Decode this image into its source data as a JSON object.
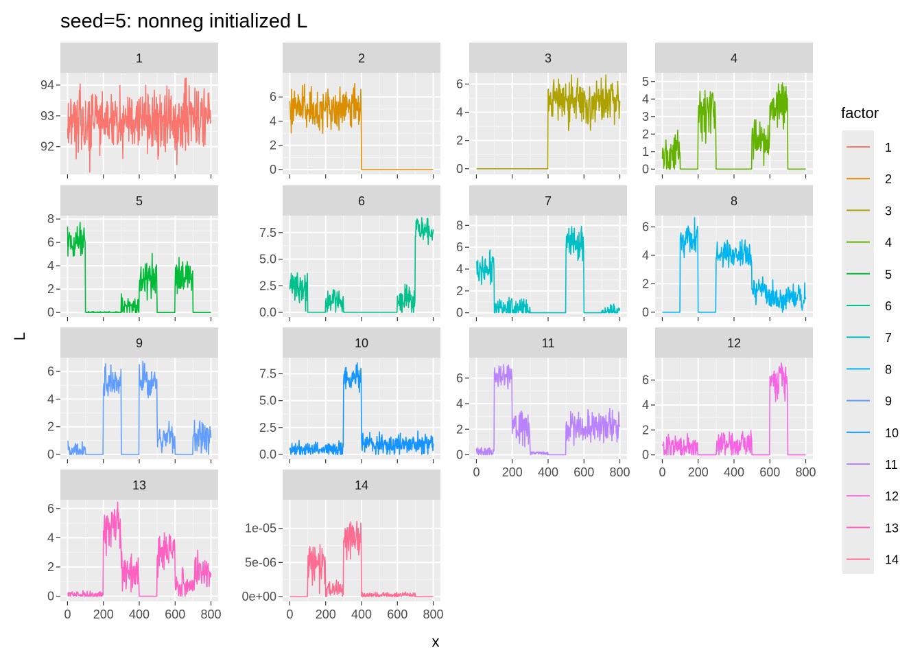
{
  "chart_data": {
    "type": "line",
    "title": "seed=5: nonneg initialized L",
    "xlabel": "x",
    "ylabel": "L",
    "facet_by": "factor",
    "scales": "free_y",
    "xlim": [
      0,
      800
    ],
    "x_ticks": [
      0,
      200,
      400,
      600,
      800
    ],
    "legend": {
      "title": "factor",
      "position": "right"
    },
    "panels": [
      {
        "label": "1",
        "color": "#F8766D",
        "ylim": [
          91.1,
          94.4
        ],
        "y_ticks": [
          92,
          93,
          94
        ],
        "y_tick_labels": [
          "92",
          "93",
          "94"
        ],
        "x_axis_visible": false,
        "segments": [
          {
            "x0": 0,
            "x1": 800,
            "mean": 92.85,
            "noise": 0.55
          }
        ]
      },
      {
        "label": "2",
        "color": "#DB8E00",
        "ylim": [
          -0.4,
          8.0
        ],
        "y_ticks": [
          0,
          2,
          4,
          6
        ],
        "y_tick_labels": [
          "0",
          "2",
          "4",
          "6"
        ],
        "x_axis_visible": false,
        "segments": [
          {
            "x0": 0,
            "x1": 400,
            "mean": 5.0,
            "noise": 0.8
          },
          {
            "x0": 400,
            "x1": 800,
            "mean": 0,
            "noise": 0
          }
        ]
      },
      {
        "label": "3",
        "color": "#AEA200",
        "ylim": [
          -0.4,
          6.8
        ],
        "y_ticks": [
          0,
          2,
          4,
          6
        ],
        "y_tick_labels": [
          "0",
          "2",
          "4",
          "6"
        ],
        "x_axis_visible": false,
        "segments": [
          {
            "x0": 0,
            "x1": 400,
            "mean": 0,
            "noise": 0
          },
          {
            "x0": 400,
            "x1": 800,
            "mean": 4.8,
            "noise": 0.75
          }
        ]
      },
      {
        "label": "4",
        "color": "#64B200",
        "ylim": [
          -0.3,
          5.5
        ],
        "y_ticks": [
          0,
          1,
          2,
          3,
          4,
          5
        ],
        "y_tick_labels": [
          "0",
          "1",
          "2",
          "3",
          "4",
          "5"
        ],
        "x_axis_visible": false,
        "segments": [
          {
            "x0": 0,
            "x1": 100,
            "mean": 1.0,
            "noise": 0.55
          },
          {
            "x0": 100,
            "x1": 200,
            "mean": 0,
            "noise": 0
          },
          {
            "x0": 200,
            "x1": 300,
            "mean": 3.2,
            "noise": 0.6
          },
          {
            "x0": 300,
            "x1": 500,
            "mean": 0,
            "noise": 0
          },
          {
            "x0": 500,
            "x1": 600,
            "mean": 1.6,
            "noise": 0.55
          },
          {
            "x0": 600,
            "x1": 700,
            "mean": 3.5,
            "noise": 0.6
          },
          {
            "x0": 700,
            "x1": 800,
            "mean": 0,
            "noise": 0
          }
        ]
      },
      {
        "label": "5",
        "color": "#00BA38",
        "ylim": [
          -0.4,
          8.3
        ],
        "y_ticks": [
          0,
          2,
          4,
          6,
          8
        ],
        "y_tick_labels": [
          "0",
          "2",
          "4",
          "6",
          "8"
        ],
        "x_axis_visible": false,
        "segments": [
          {
            "x0": 0,
            "x1": 100,
            "mean": 6.0,
            "noise": 0.7
          },
          {
            "x0": 100,
            "x1": 300,
            "mean": 0,
            "noise": 0.05
          },
          {
            "x0": 300,
            "x1": 400,
            "mean": 0.5,
            "noise": 0.4
          },
          {
            "x0": 400,
            "x1": 500,
            "mean": 3.0,
            "noise": 0.8
          },
          {
            "x0": 500,
            "x1": 600,
            "mean": 0,
            "noise": 0
          },
          {
            "x0": 600,
            "x1": 700,
            "mean": 3.0,
            "noise": 0.8
          },
          {
            "x0": 700,
            "x1": 800,
            "mean": 0,
            "noise": 0
          }
        ]
      },
      {
        "label": "6",
        "color": "#00C08B",
        "ylim": [
          -0.45,
          9.1
        ],
        "y_ticks": [
          0,
          2.5,
          5,
          7.5
        ],
        "y_tick_labels": [
          "0.0",
          "2.5",
          "5.0",
          "7.5"
        ],
        "x_axis_visible": false,
        "segments": [
          {
            "x0": 0,
            "x1": 100,
            "mean": 2.5,
            "noise": 0.9
          },
          {
            "x0": 100,
            "x1": 200,
            "mean": 0,
            "noise": 0
          },
          {
            "x0": 200,
            "x1": 300,
            "mean": 1.0,
            "noise": 0.6
          },
          {
            "x0": 300,
            "x1": 600,
            "mean": 0,
            "noise": 0
          },
          {
            "x0": 600,
            "x1": 700,
            "mean": 1.2,
            "noise": 0.7
          },
          {
            "x0": 700,
            "x1": 800,
            "mean": 7.8,
            "noise": 0.6
          }
        ]
      },
      {
        "label": "7",
        "color": "#00BFC4",
        "ylim": [
          -0.4,
          8.9
        ],
        "y_ticks": [
          0,
          2,
          4,
          6,
          8
        ],
        "y_tick_labels": [
          "0",
          "2",
          "4",
          "6",
          "8"
        ],
        "x_axis_visible": false,
        "segments": [
          {
            "x0": 0,
            "x1": 100,
            "mean": 4.0,
            "noise": 0.8
          },
          {
            "x0": 100,
            "x1": 300,
            "mean": 0.4,
            "noise": 0.45
          },
          {
            "x0": 300,
            "x1": 500,
            "mean": 0,
            "noise": 0
          },
          {
            "x0": 500,
            "x1": 600,
            "mean": 6.5,
            "noise": 0.8
          },
          {
            "x0": 600,
            "x1": 700,
            "mean": 0,
            "noise": 0
          },
          {
            "x0": 700,
            "x1": 800,
            "mean": 0.2,
            "noise": 0.3
          }
        ]
      },
      {
        "label": "8",
        "color": "#00B4F0",
        "ylim": [
          -0.35,
          6.8
        ],
        "y_ticks": [
          0,
          2,
          4,
          6
        ],
        "y_tick_labels": [
          "0",
          "2",
          "4",
          "6"
        ],
        "x_axis_visible": false,
        "segments": [
          {
            "x0": 0,
            "x1": 100,
            "mean": 0,
            "noise": 0
          },
          {
            "x0": 100,
            "x1": 200,
            "mean": 5.2,
            "noise": 0.6
          },
          {
            "x0": 200,
            "x1": 300,
            "mean": 0,
            "noise": 0
          },
          {
            "x0": 300,
            "x1": 500,
            "mean": 4.0,
            "noise": 0.5
          },
          {
            "x0": 500,
            "x1": 600,
            "mean": 1.5,
            "noise": 0.5
          },
          {
            "x0": 600,
            "x1": 800,
            "mean": 0.9,
            "noise": 0.45
          }
        ]
      },
      {
        "label": "9",
        "color": "#619CFF",
        "ylim": [
          -0.35,
          7.0
        ],
        "y_ticks": [
          0,
          2,
          4,
          6
        ],
        "y_tick_labels": [
          "0",
          "2",
          "4",
          "6"
        ],
        "x_axis_visible": false,
        "segments": [
          {
            "x0": 0,
            "x1": 100,
            "mean": 0.3,
            "noise": 0.3
          },
          {
            "x0": 100,
            "x1": 200,
            "mean": 0,
            "noise": 0
          },
          {
            "x0": 200,
            "x1": 300,
            "mean": 5.3,
            "noise": 0.6
          },
          {
            "x0": 300,
            "x1": 400,
            "mean": 0,
            "noise": 0
          },
          {
            "x0": 400,
            "x1": 500,
            "mean": 5.3,
            "noise": 0.6
          },
          {
            "x0": 500,
            "x1": 600,
            "mean": 1.2,
            "noise": 0.5
          },
          {
            "x0": 600,
            "x1": 700,
            "mean": 0,
            "noise": 0
          },
          {
            "x0": 700,
            "x1": 800,
            "mean": 1.2,
            "noise": 0.5
          }
        ]
      },
      {
        "label": "10",
        "color": "#1494FF",
        "ylim": [
          -0.45,
          9.0
        ],
        "y_ticks": [
          0,
          2.5,
          5,
          7.5
        ],
        "y_tick_labels": [
          "0.0",
          "2.5",
          "5.0",
          "7.5"
        ],
        "x_axis_visible": false,
        "segments": [
          {
            "x0": 0,
            "x1": 300,
            "mean": 0.4,
            "noise": 0.35
          },
          {
            "x0": 300,
            "x1": 400,
            "mean": 7.2,
            "noise": 0.6
          },
          {
            "x0": 400,
            "x1": 800,
            "mean": 1.0,
            "noise": 0.45
          }
        ]
      },
      {
        "label": "11",
        "color": "#B983FF",
        "ylim": [
          -0.35,
          7.6
        ],
        "y_ticks": [
          0,
          2,
          4,
          6
        ],
        "y_tick_labels": [
          "0",
          "2",
          "4",
          "6"
        ],
        "x_axis_visible": true,
        "segments": [
          {
            "x0": 0,
            "x1": 100,
            "mean": 0.2,
            "noise": 0.2
          },
          {
            "x0": 100,
            "x1": 200,
            "mean": 6.2,
            "noise": 0.6
          },
          {
            "x0": 200,
            "x1": 300,
            "mean": 2.0,
            "noise": 0.7
          },
          {
            "x0": 300,
            "x1": 400,
            "mean": 0.1,
            "noise": 0.1
          },
          {
            "x0": 400,
            "x1": 500,
            "mean": 0,
            "noise": 0
          },
          {
            "x0": 500,
            "x1": 800,
            "mean": 2.2,
            "noise": 0.6
          }
        ]
      },
      {
        "label": "12",
        "color": "#F564E3",
        "ylim": [
          -0.35,
          7.8
        ],
        "y_ticks": [
          0,
          2,
          4,
          6
        ],
        "y_tick_labels": [
          "0",
          "2",
          "4",
          "6"
        ],
        "x_axis_visible": true,
        "segments": [
          {
            "x0": 0,
            "x1": 200,
            "mean": 0.6,
            "noise": 0.5
          },
          {
            "x0": 200,
            "x1": 300,
            "mean": 0,
            "noise": 0
          },
          {
            "x0": 300,
            "x1": 500,
            "mean": 0.8,
            "noise": 0.55
          },
          {
            "x0": 500,
            "x1": 600,
            "mean": 0,
            "noise": 0
          },
          {
            "x0": 600,
            "x1": 700,
            "mean": 5.8,
            "noise": 0.7
          },
          {
            "x0": 700,
            "x1": 800,
            "mean": 0,
            "noise": 0
          }
        ]
      },
      {
        "label": "13",
        "color": "#FF61C3",
        "ylim": [
          -0.35,
          6.6
        ],
        "y_ticks": [
          0,
          2,
          4,
          6
        ],
        "y_tick_labels": [
          "0",
          "2",
          "4",
          "6"
        ],
        "x_axis_visible": true,
        "segments": [
          {
            "x0": 0,
            "x1": 200,
            "mean": 0.1,
            "noise": 0.12
          },
          {
            "x0": 200,
            "x1": 300,
            "mean": 4.6,
            "noise": 0.65
          },
          {
            "x0": 300,
            "x1": 400,
            "mean": 1.6,
            "noise": 0.55
          },
          {
            "x0": 400,
            "x1": 500,
            "mean": 0,
            "noise": 0
          },
          {
            "x0": 500,
            "x1": 600,
            "mean": 3.2,
            "noise": 0.7
          },
          {
            "x0": 600,
            "x1": 700,
            "mean": 0.8,
            "noise": 0.45
          },
          {
            "x0": 700,
            "x1": 800,
            "mean": 1.6,
            "noise": 0.6
          }
        ]
      },
      {
        "label": "14",
        "color": "#FF6C91",
        "ylim": [
          -7e-07,
          1.42e-05
        ],
        "y_ticks": [
          0,
          5e-06,
          1e-05
        ],
        "y_tick_labels": [
          "0e+00",
          "5e-06",
          "1e-05"
        ],
        "x_axis_visible": true,
        "segments": [
          {
            "x0": 0,
            "x1": 100,
            "mean": 0,
            "noise": 0
          },
          {
            "x0": 100,
            "x1": 200,
            "mean": 4.5e-06,
            "noise": 1.6e-06
          },
          {
            "x0": 200,
            "x1": 300,
            "mean": 1e-06,
            "noise": 7e-07
          },
          {
            "x0": 300,
            "x1": 400,
            "mean": 8.5e-06,
            "noise": 1.6e-06
          },
          {
            "x0": 400,
            "x1": 700,
            "mean": 2e-07,
            "noise": 2e-07
          },
          {
            "x0": 700,
            "x1": 800,
            "mean": 0,
            "noise": 0
          }
        ]
      }
    ]
  }
}
